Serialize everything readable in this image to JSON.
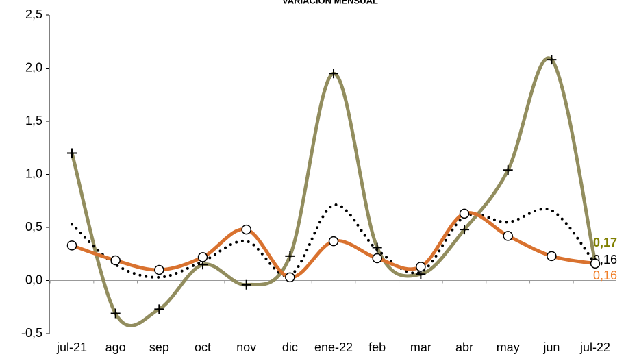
{
  "chart_data": {
    "type": "line",
    "title": "VARIACION MENSUAL",
    "categories": [
      "jul-21",
      "ago",
      "sep",
      "oct",
      "nov",
      "dic",
      "ene-22",
      "feb",
      "mar",
      "abr",
      "may",
      "jun",
      "jul-22"
    ],
    "ylim": [
      -0.5,
      2.5
    ],
    "yticks": [
      {
        "value": -0.5,
        "label": "-0,5"
      },
      {
        "value": 0,
        "label": "0,0"
      },
      {
        "value": 0.5,
        "label": "0,5"
      },
      {
        "value": 1,
        "label": "1,0"
      },
      {
        "value": 1.5,
        "label": "1,5"
      },
      {
        "value": 2,
        "label": "2,0"
      },
      {
        "value": 2.5,
        "label": "2,5"
      }
    ],
    "series": [
      {
        "color": "#928d5e",
        "marker": "plus",
        "dash": "solid",
        "label_color": "#7f7f00",
        "values": [
          1.2,
          -0.31,
          -0.27,
          0.15,
          -0.04,
          0.23,
          1.95,
          0.31,
          0.06,
          0.48,
          1.04,
          2.08,
          0.17
        ],
        "value_labels": [
          null,
          null,
          null,
          null,
          null,
          null,
          null,
          null,
          null,
          null,
          null,
          null,
          "0,17"
        ]
      },
      {
        "color": "#000000",
        "marker": "none",
        "dash": "dotted",
        "label_color": "#000000",
        "values": [
          0.53,
          0.15,
          0.03,
          0.18,
          0.37,
          0.05,
          0.71,
          0.29,
          0.08,
          0.6,
          0.55,
          0.66,
          0.16
        ],
        "value_labels": [
          null,
          null,
          null,
          null,
          null,
          null,
          null,
          null,
          null,
          null,
          null,
          null,
          "0,16"
        ]
      },
      {
        "color": "#d9722f",
        "marker": "circle",
        "dash": "solid",
        "label_color": "#f07f2a",
        "values": [
          0.33,
          0.19,
          0.1,
          0.22,
          0.48,
          0.03,
          0.37,
          0.21,
          0.13,
          0.63,
          0.42,
          0.23,
          0.16
        ],
        "value_labels": [
          null,
          null,
          null,
          null,
          null,
          null,
          null,
          null,
          null,
          null,
          null,
          null,
          "0,16"
        ]
      }
    ]
  }
}
